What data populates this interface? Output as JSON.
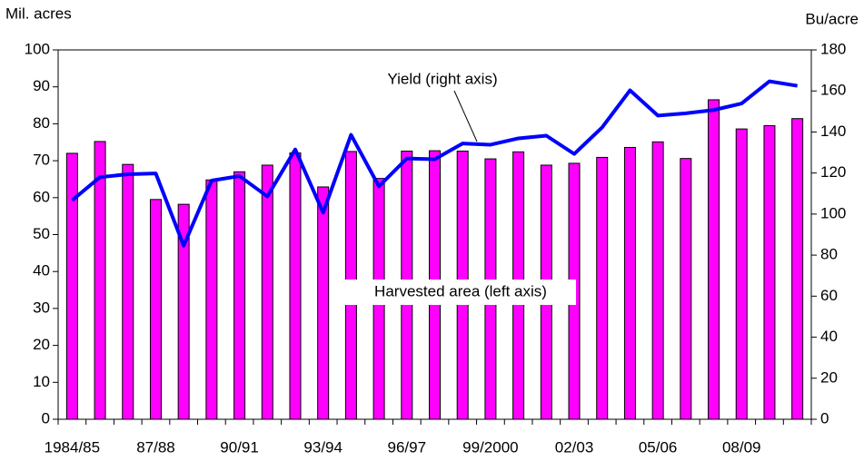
{
  "chart_data": {
    "type": "bar_line",
    "y_label": "Mil. acres",
    "y2_label": "Bu/acre",
    "categories": [
      "1984/85",
      null,
      null,
      "87/88",
      null,
      null,
      "90/91",
      null,
      null,
      "93/94",
      null,
      null,
      "96/97",
      null,
      null,
      "99/2000",
      null,
      null,
      "02/03",
      null,
      null,
      "05/06",
      null,
      null,
      "08/09",
      null,
      null
    ],
    "series": [
      {
        "name": "Harvested area (left axis)",
        "type": "bar",
        "color": "#ff00ff",
        "axis": "y",
        "values": [
          72,
          75.2,
          69,
          59.5,
          58.2,
          64.8,
          67,
          68.8,
          72.1,
          62.9,
          72.5,
          65.2,
          72.6,
          72.7,
          72.6,
          70.5,
          72.4,
          68.8,
          69.3,
          70.9,
          73.6,
          75.1,
          70.6,
          86.5,
          78.6,
          79.5,
          81.4
        ]
      },
      {
        "name": "Yield (right axis)",
        "type": "line",
        "color": "#0000ff",
        "axis": "y2",
        "values": [
          106.7,
          118,
          119.4,
          119.8,
          84.6,
          116.3,
          118.5,
          108.6,
          131.5,
          100.7,
          138.6,
          113.5,
          127.1,
          126.7,
          134.4,
          133.8,
          136.9,
          138.2,
          129.3,
          142.2,
          160.3,
          148,
          149.1,
          150.7,
          153.9,
          164.7,
          162.5
        ]
      }
    ],
    "ylim": [
      0,
      100
    ],
    "yticks": [
      0,
      10,
      20,
      30,
      40,
      50,
      60,
      70,
      80,
      90,
      100
    ],
    "y2lim": [
      0,
      180
    ],
    "y2ticks": [
      0,
      20,
      40,
      60,
      80,
      100,
      120,
      140,
      160,
      180
    ],
    "grid": false
  }
}
